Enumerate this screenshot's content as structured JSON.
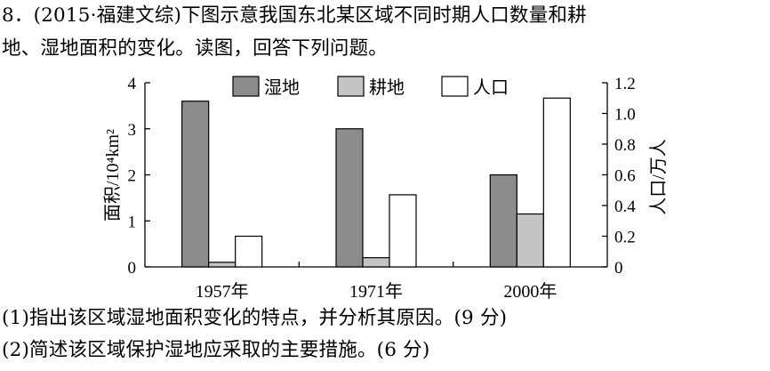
{
  "question": {
    "intro_line1": "8．(2015·福建文综)下图示意我国东北某区域不同时期人口数量和耕",
    "intro_line2": "地、湿地面积的变化。读图，回答下列问题。",
    "q1": "(1)指出该区域湿地面积变化的特点，并分析其原因。(9 分)",
    "q2": "(2)简述该区域保护湿地应采取的主要措施。(6 分)"
  },
  "chart_data": {
    "type": "bar",
    "categories": [
      "1957年",
      "1971年",
      "2000年"
    ],
    "series": [
      {
        "name": "湿地",
        "axis": "left",
        "color": "#8c8c8c",
        "values": [
          3.6,
          3.0,
          2.0
        ]
      },
      {
        "name": "耕地",
        "axis": "left",
        "color": "#c4c4c4",
        "values": [
          0.1,
          0.2,
          1.15
        ]
      },
      {
        "name": "人口",
        "axis": "right",
        "color": "#ffffff",
        "values": [
          0.2,
          0.47,
          1.1
        ]
      }
    ],
    "ylabel_left": "面积/10⁴km²",
    "ylabel_right": "人口/万人",
    "ylim_left": [
      0,
      4
    ],
    "ylim_right": [
      0,
      1.2
    ],
    "yticks_left": [
      "0",
      "1",
      "2",
      "3",
      "4"
    ],
    "yticks_right": [
      "0",
      "0.2",
      "0.4",
      "0.6",
      "0.8",
      "1.0",
      "1.2"
    ],
    "legend_position": "top",
    "grid": false
  }
}
